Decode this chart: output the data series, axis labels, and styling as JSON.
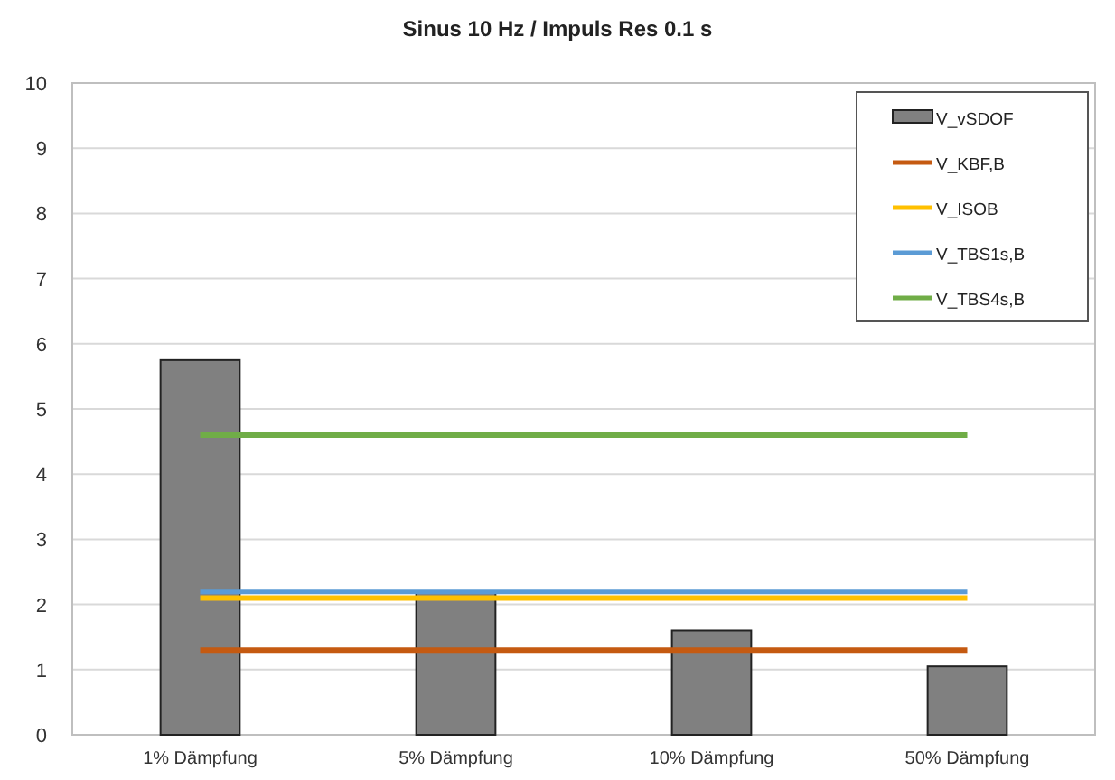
{
  "chart_data": {
    "type": "bar",
    "title": "Sinus 10 Hz / Impuls Res 0.1 s",
    "categories": [
      "1% Dämpfung",
      "5% Dämpfung",
      "10% Dämpfung",
      "50% Dämpfung"
    ],
    "series": [
      {
        "name": "V_vSDOF",
        "color": "#808080",
        "values": [
          5.75,
          2.18,
          1.6,
          1.05
        ]
      },
      {
        "name": "V_KBF,B",
        "type": "line",
        "color": "#c55a11",
        "values": [
          1.3,
          1.3,
          1.3,
          1.3
        ]
      },
      {
        "name": "V_ISOB",
        "type": "line",
        "color": "#ffc000",
        "values": [
          2.1,
          2.1,
          2.1,
          2.1
        ]
      },
      {
        "name": "V_TBS1s,B",
        "type": "line",
        "color": "#5b9bd5",
        "values": [
          2.2,
          2.2,
          2.2,
          2.2
        ]
      },
      {
        "name": "V_TBS4s,B",
        "type": "line",
        "color": "#70ad47",
        "values": [
          4.6,
          4.6,
          4.6,
          4.6
        ]
      }
    ],
    "ylim": [
      0,
      10
    ],
    "yticks": [
      0,
      1,
      2,
      3,
      4,
      5,
      6,
      7,
      8,
      9,
      10
    ],
    "grid": "y",
    "legend": "top right",
    "marker": "none",
    "line_style": "solid"
  }
}
